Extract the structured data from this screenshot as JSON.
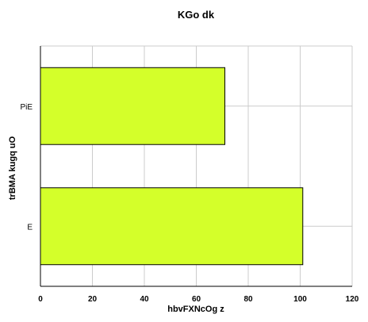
{
  "chart_data": {
    "type": "bar",
    "orientation": "horizontal",
    "title": "KGo dk",
    "xlabel": "hbvFXNcOg z",
    "ylabel": "trBMA kugq uO",
    "categories": [
      "PiE",
      "E"
    ],
    "values": [
      71,
      101
    ],
    "xlim": [
      0,
      120
    ],
    "xticks": [
      0,
      20,
      40,
      60,
      80,
      100,
      120
    ],
    "grid": true,
    "bar_color": "#d4ff2a",
    "bar_edge_color": "#000000"
  }
}
